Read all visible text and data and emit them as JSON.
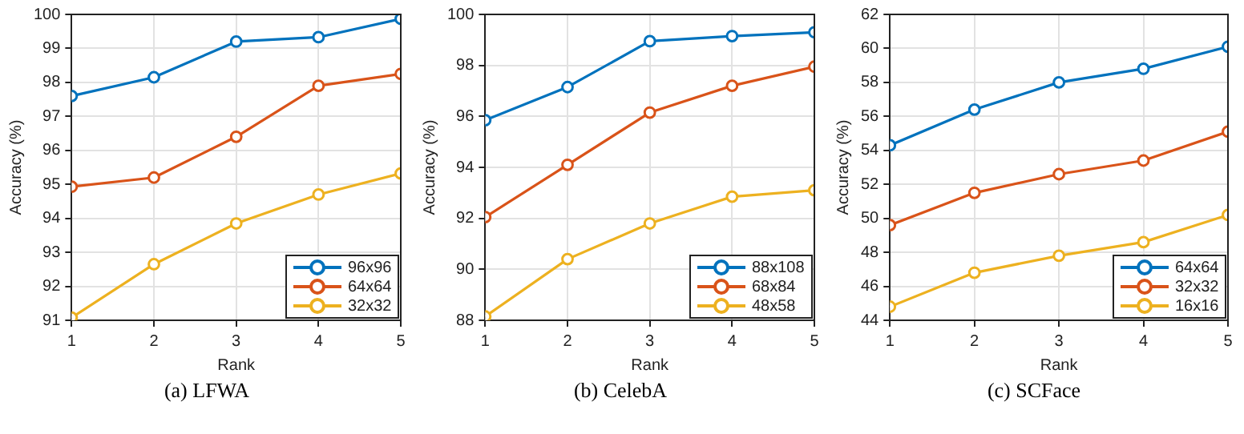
{
  "chart_data": [
    {
      "type": "line",
      "x": [
        1,
        2,
        3,
        4,
        5
      ],
      "xlabel": "Rank",
      "ylabel": "Accuracy (%)",
      "xlim": [
        1,
        5
      ],
      "xticks": [
        1,
        2,
        3,
        4,
        5
      ],
      "ylim": [
        91,
        100
      ],
      "yticks": [
        91,
        92,
        93,
        94,
        95,
        96,
        97,
        98,
        99,
        100
      ],
      "grid": true,
      "legend": "bottom right",
      "marker": "circle",
      "line_style": "solid",
      "annotations": [
        "(a)  LFWA"
      ],
      "series": [
        {
          "name": "96x96",
          "color": "#0072bd",
          "values": [
            97.6,
            98.15,
            99.2,
            99.33,
            99.87
          ]
        },
        {
          "name": "64x64",
          "color": "#d95319",
          "values": [
            94.93,
            95.2,
            96.4,
            97.9,
            98.25
          ]
        },
        {
          "name": "32x32",
          "color": "#edb120",
          "values": [
            91.08,
            92.65,
            93.85,
            94.7,
            95.32
          ]
        }
      ]
    },
    {
      "type": "line",
      "x": [
        1,
        2,
        3,
        4,
        5
      ],
      "xlabel": "Rank",
      "ylabel": "Accuracy (%)",
      "xlim": [
        1,
        5
      ],
      "xticks": [
        1,
        2,
        3,
        4,
        5
      ],
      "ylim": [
        88,
        100
      ],
      "yticks": [
        88,
        90,
        92,
        94,
        96,
        98,
        100
      ],
      "grid": true,
      "legend": "bottom right",
      "marker": "circle",
      "line_style": "solid",
      "annotations": [
        "(b)  CelebA"
      ],
      "series": [
        {
          "name": "88x108",
          "color": "#0072bd",
          "values": [
            95.85,
            97.15,
            98.95,
            99.15,
            99.3
          ]
        },
        {
          "name": "68x84",
          "color": "#d95319",
          "values": [
            92.05,
            94.1,
            96.15,
            97.2,
            97.95
          ]
        },
        {
          "name": "48x58",
          "color": "#edb120",
          "values": [
            88.15,
            90.4,
            91.8,
            92.85,
            93.1
          ]
        }
      ]
    },
    {
      "type": "line",
      "x": [
        1,
        2,
        3,
        4,
        5
      ],
      "xlabel": "Rank",
      "ylabel": "Accuracy (%)",
      "xlim": [
        1,
        5
      ],
      "xticks": [
        1,
        2,
        3,
        4,
        5
      ],
      "ylim": [
        44,
        62
      ],
      "yticks": [
        44,
        46,
        48,
        50,
        52,
        54,
        56,
        58,
        60,
        62
      ],
      "grid": true,
      "legend": "bottom right",
      "marker": "circle",
      "line_style": "solid",
      "annotations": [
        "(c)  SCFace"
      ],
      "series": [
        {
          "name": "64x64",
          "color": "#0072bd",
          "values": [
            54.3,
            56.4,
            58.0,
            58.8,
            60.1
          ]
        },
        {
          "name": "32x32",
          "color": "#d95319",
          "values": [
            49.6,
            51.5,
            52.6,
            53.4,
            55.1
          ]
        },
        {
          "name": "16x16",
          "color": "#edb120",
          "values": [
            44.8,
            46.8,
            47.8,
            48.6,
            50.2
          ]
        }
      ]
    }
  ]
}
